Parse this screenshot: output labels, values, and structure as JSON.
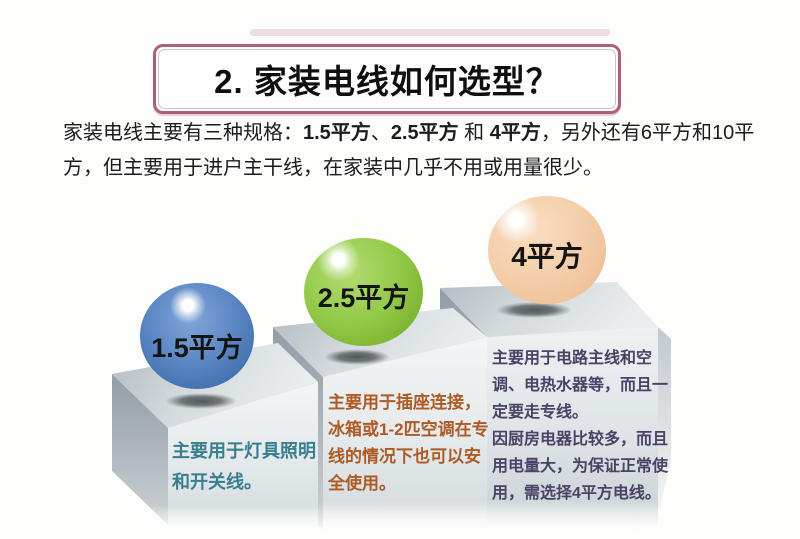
{
  "banner": {
    "title": "2. 家装电线如何选型？",
    "border_color": "#ad5f7e",
    "inner_border_color": "#d3bfc9"
  },
  "intro": {
    "segments": [
      {
        "text": "家装电线主要有三种规格：",
        "bold": false
      },
      {
        "text": "1.5平方",
        "bold": true
      },
      {
        "text": "、",
        "bold": false
      },
      {
        "text": "2.5平方",
        "bold": true
      },
      {
        "text": " 和 ",
        "bold": false
      },
      {
        "text": "4平方",
        "bold": true
      },
      {
        "text": "，另外还有6平方和10平方，但主要用于进户主干线，在家装中几乎不用或用量很少。",
        "bold": false
      }
    ]
  },
  "steps": [
    {
      "sphere_label": "1.5平方",
      "sphere_color": "#5d88c5",
      "text_color": "#377f8e",
      "paragraphs": [
        "主要用于灯具照明和开关线。"
      ]
    },
    {
      "sphere_label": "2.5平方",
      "sphere_color": "#93ca49",
      "text_color": "#ad5a24",
      "paragraphs": [
        "主要用于插座连接，冰箱或1-2匹空调在专线的情况下也可以安全使用。"
      ]
    },
    {
      "sphere_label": "4平方",
      "sphere_color": "#f3cda8",
      "text_color": "#4a4166",
      "paragraphs": [
        "主要用于电路主线和空调、电热水器等，而且一定要走专线。",
        "因厨房电器比较多，而且用电量大，为保证正常使用，需选择4平方电线。"
      ]
    }
  ]
}
